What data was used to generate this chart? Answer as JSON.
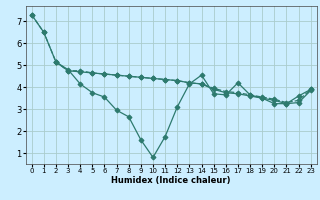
{
  "xlabel": "Humidex (Indice chaleur)",
  "background_color": "#cceeff",
  "grid_color": "#aacccc",
  "line_color": "#2d7a6e",
  "xlim": [
    -0.5,
    23.5
  ],
  "ylim": [
    0.5,
    7.7
  ],
  "xticks": [
    0,
    1,
    2,
    3,
    4,
    5,
    6,
    7,
    8,
    9,
    10,
    11,
    12,
    13,
    14,
    15,
    16,
    17,
    18,
    19,
    20,
    21,
    22,
    23
  ],
  "yticks": [
    1,
    2,
    3,
    4,
    5,
    6,
    7
  ],
  "line1_x": [
    0,
    1,
    2,
    3,
    4,
    5,
    6,
    7,
    8,
    9,
    10,
    11,
    12,
    13,
    14,
    15,
    16,
    17,
    18,
    19,
    20,
    21,
    22,
    23
  ],
  "line1_y": [
    7.3,
    6.5,
    5.15,
    4.8,
    4.15,
    3.75,
    3.55,
    2.95,
    2.65,
    1.6,
    0.8,
    1.75,
    3.1,
    4.15,
    4.55,
    3.7,
    3.65,
    4.2,
    3.65,
    3.5,
    3.25,
    3.25,
    3.6,
    3.9
  ],
  "line1_style": "-",
  "line2_x": [
    0,
    1,
    2,
    3,
    4,
    5,
    6,
    7,
    8,
    9,
    10,
    11,
    12,
    13,
    14,
    15,
    16,
    17,
    18,
    19,
    20,
    21,
    22,
    23
  ],
  "line2_y": [
    7.3,
    6.5,
    5.15,
    4.75,
    4.75,
    4.65,
    4.6,
    4.55,
    4.5,
    4.45,
    4.4,
    4.35,
    4.3,
    4.2,
    4.15,
    3.95,
    3.8,
    3.75,
    3.65,
    3.55,
    3.45,
    3.3,
    3.4,
    3.9
  ],
  "line2_style": "--",
  "line3_x": [
    2,
    3,
    4,
    5,
    6,
    7,
    8,
    9,
    10,
    11,
    12,
    13,
    14,
    15,
    16,
    17,
    18,
    19,
    20,
    21,
    22,
    23
  ],
  "line3_y": [
    5.15,
    4.75,
    4.7,
    4.65,
    4.6,
    4.55,
    4.5,
    4.45,
    4.4,
    4.35,
    4.3,
    4.2,
    4.15,
    3.9,
    3.75,
    3.7,
    3.6,
    3.5,
    3.4,
    3.25,
    3.3,
    3.85
  ],
  "line3_style": "-"
}
